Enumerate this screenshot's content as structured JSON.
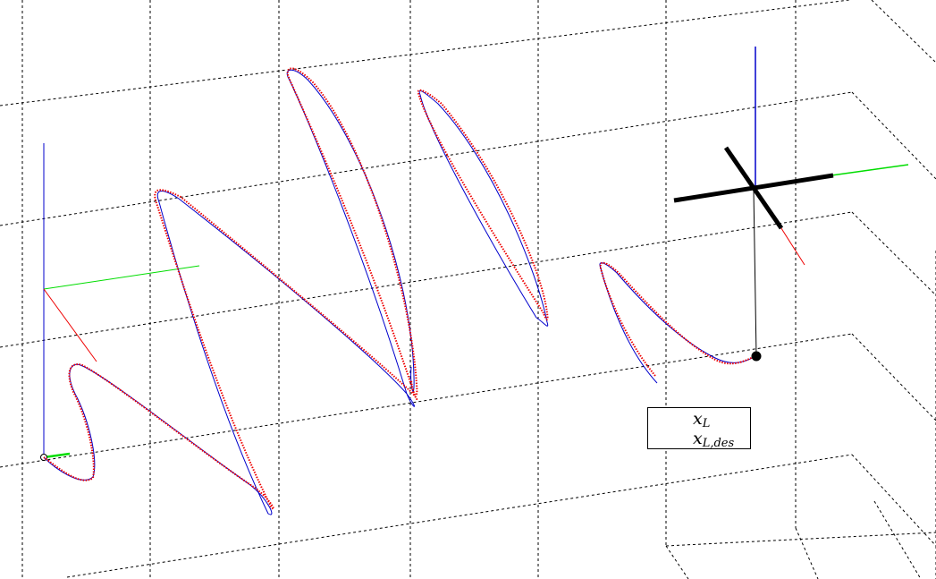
{
  "chart_data": {
    "type": "line",
    "title": "",
    "grid": true,
    "legend": {
      "placement": "lower-right",
      "entries": [
        {
          "base": "x",
          "sub": "L",
          "color": "#0000cc",
          "style": "dashed"
        },
        {
          "base": "x",
          "sub": "L,des",
          "color": "#ee0000",
          "style": "dotted"
        }
      ]
    },
    "series": [
      {
        "id": "xL",
        "color": "#0000cc"
      },
      {
        "id": "xLdes",
        "color": "#ee0000"
      }
    ],
    "axes_colors": {
      "x": "#ee0000",
      "y": "#00dd00",
      "z": "#0000cc"
    }
  }
}
